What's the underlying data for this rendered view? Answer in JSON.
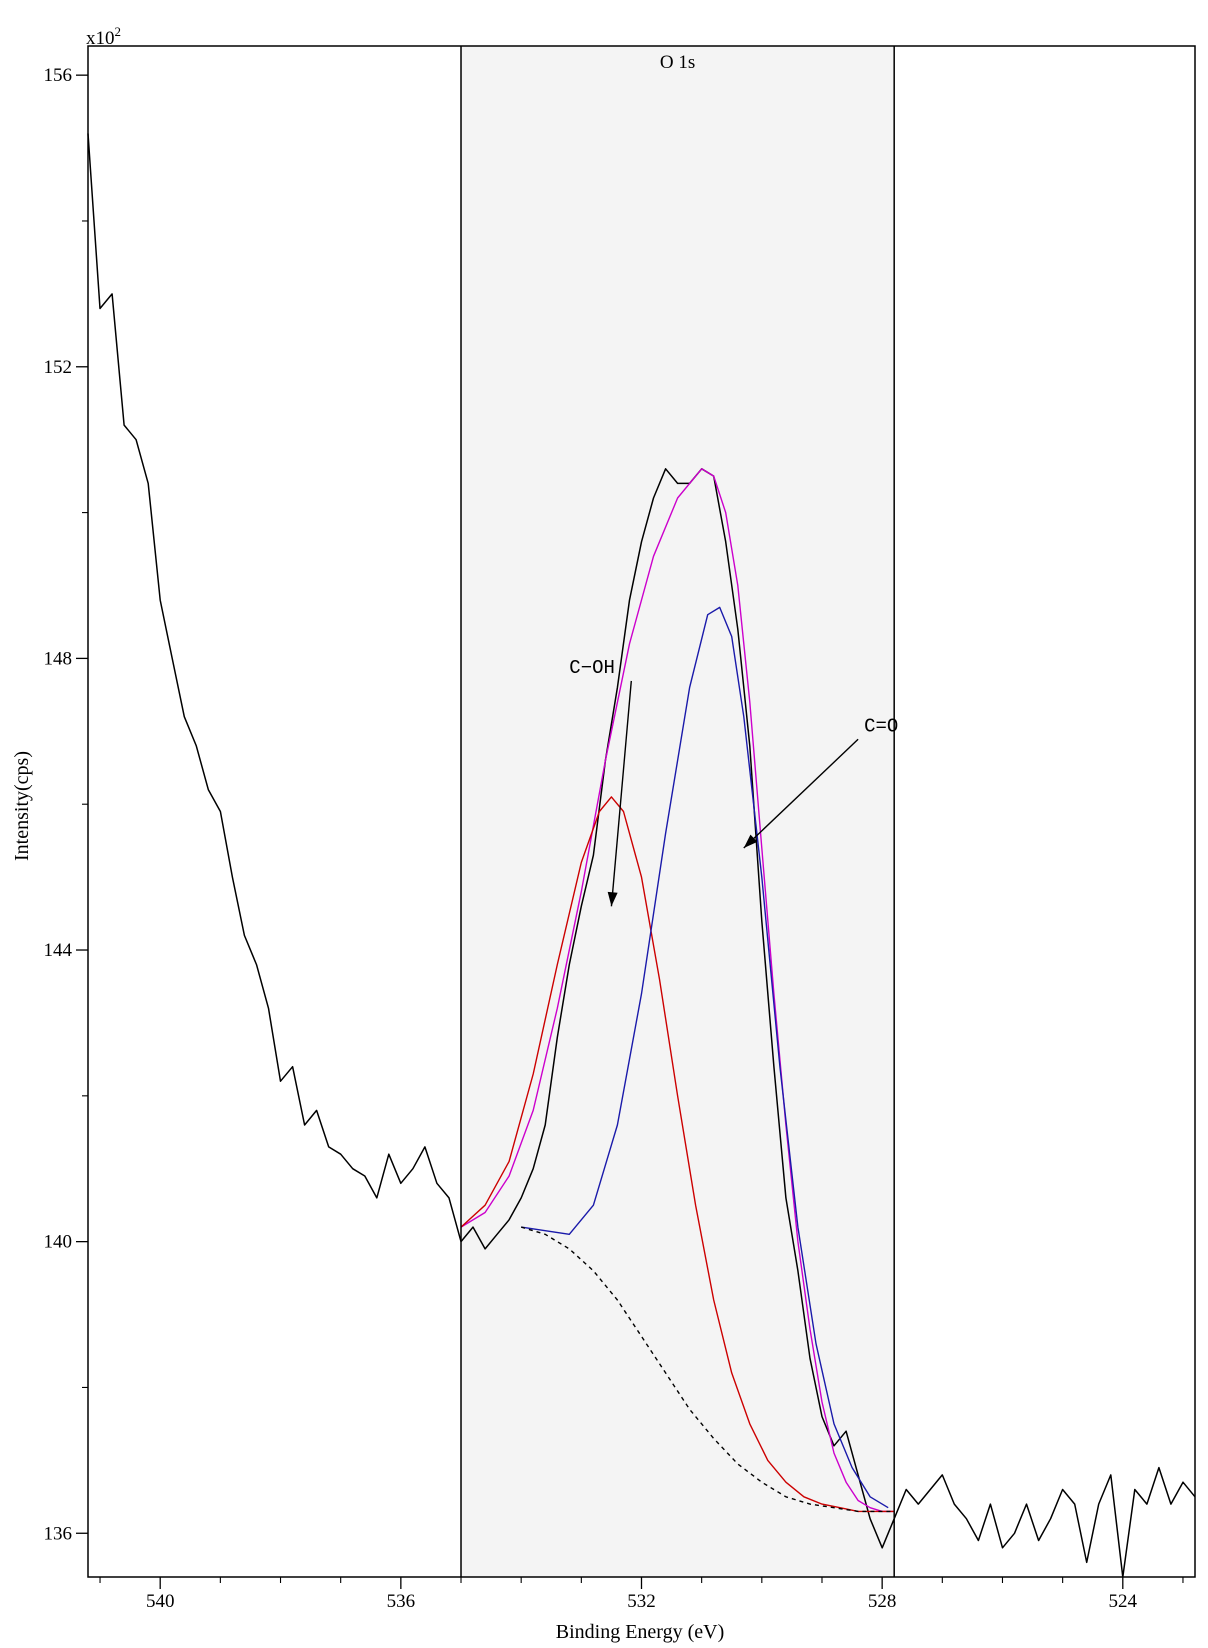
{
  "chart_data": {
    "type": "line",
    "title": "",
    "region_label": "O 1s",
    "xlabel": "Binding Energy (eV)",
    "ylabel": "Intensity(cps)",
    "y_multiplier_label": "x10",
    "y_multiplier_exp": "2",
    "x_reversed": true,
    "xlim": [
      541.2,
      522.8
    ],
    "ylim": [
      135.4,
      156.4
    ],
    "x_ticks": [
      540,
      536,
      532,
      528,
      524
    ],
    "y_ticks": [
      136,
      140,
      144,
      148,
      152,
      156
    ],
    "region": [
      535.0,
      527.8
    ],
    "grid": false,
    "colors": {
      "data": "#000000",
      "envelope": "#cc00cc",
      "c_oh": "#cc0000",
      "c_o": "#1a1aaa",
      "background": "#000000",
      "region_fill": "#f4f4f4"
    },
    "annotations": [
      {
        "text": "C−OH",
        "x": 533.2,
        "y": 147.8,
        "arrow_to": [
          532.5,
          144.6
        ]
      },
      {
        "text": "C=O",
        "x": 528.3,
        "y": 147.0,
        "arrow_to": [
          530.3,
          145.4
        ]
      }
    ],
    "series": [
      {
        "key": "data",
        "x": [
          541.2,
          541.0,
          540.8,
          540.6,
          540.4,
          540.2,
          540.0,
          539.8,
          539.6,
          539.4,
          539.2,
          539.0,
          538.8,
          538.6,
          538.4,
          538.2,
          538.0,
          537.8,
          537.6,
          537.4,
          537.2,
          537.0,
          536.8,
          536.6,
          536.4,
          536.2,
          536.0,
          535.8,
          535.6,
          535.4,
          535.2,
          535.0,
          534.8,
          534.6,
          534.4,
          534.2,
          534.0,
          533.8,
          533.6,
          533.4,
          533.2,
          533.0,
          532.8,
          532.6,
          532.4,
          532.2,
          532.0,
          531.8,
          531.6,
          531.4,
          531.2,
          531.0,
          530.8,
          530.6,
          530.4,
          530.2,
          530.0,
          529.8,
          529.6,
          529.4,
          529.2,
          529.0,
          528.8,
          528.6,
          528.4,
          528.2,
          528.0,
          527.8,
          527.6,
          527.4,
          527.2,
          527.0,
          526.8,
          526.6,
          526.4,
          526.2,
          526.0,
          525.8,
          525.6,
          525.4,
          525.2,
          525.0,
          524.8,
          524.6,
          524.4,
          524.2,
          524.0,
          523.8,
          523.6,
          523.4,
          523.2,
          523.0,
          522.8
        ],
        "y": [
          155.2,
          152.8,
          153.0,
          151.2,
          151.0,
          150.4,
          148.8,
          148.0,
          147.2,
          146.8,
          146.2,
          145.9,
          145.0,
          144.2,
          143.8,
          143.2,
          142.2,
          142.4,
          141.6,
          141.8,
          141.3,
          141.2,
          141.0,
          140.9,
          140.6,
          141.2,
          140.8,
          141.0,
          141.3,
          140.8,
          140.6,
          140.0,
          140.2,
          139.9,
          140.1,
          140.3,
          140.6,
          141.0,
          141.6,
          142.8,
          143.8,
          144.6,
          145.3,
          146.6,
          147.6,
          148.8,
          149.6,
          150.2,
          150.6,
          150.4,
          150.4,
          150.6,
          150.5,
          149.6,
          148.4,
          146.8,
          144.4,
          142.4,
          140.6,
          139.6,
          138.4,
          137.6,
          137.2,
          137.4,
          136.8,
          136.2,
          135.8,
          136.2,
          136.6,
          136.4,
          136.6,
          136.8,
          136.4,
          136.2,
          135.9,
          136.4,
          135.8,
          136.0,
          136.4,
          135.9,
          136.2,
          136.6,
          136.4,
          135.6,
          136.4,
          136.8,
          135.4,
          136.6,
          136.4,
          136.9,
          136.4,
          136.7,
          136.5
        ]
      },
      {
        "key": "envelope",
        "x": [
          535.0,
          534.6,
          534.2,
          533.8,
          533.4,
          533.0,
          532.6,
          532.2,
          531.8,
          531.4,
          531.0,
          530.8,
          530.6,
          530.4,
          530.2,
          530.0,
          529.8,
          529.6,
          529.4,
          529.2,
          529.0,
          528.8,
          528.6,
          528.4,
          528.2,
          528.0,
          527.8
        ],
        "y": [
          140.2,
          140.4,
          140.9,
          141.8,
          143.2,
          144.8,
          146.6,
          148.2,
          149.4,
          150.2,
          150.6,
          150.5,
          150.0,
          149.0,
          147.4,
          145.4,
          143.4,
          141.6,
          140.0,
          138.8,
          137.8,
          137.1,
          136.7,
          136.45,
          136.35,
          136.3,
          136.3
        ]
      },
      {
        "key": "c_oh",
        "x": [
          535.0,
          534.6,
          534.2,
          533.8,
          533.4,
          533.0,
          532.7,
          532.5,
          532.3,
          532.0,
          531.7,
          531.4,
          531.1,
          530.8,
          530.5,
          530.2,
          529.9,
          529.6,
          529.3,
          529.0,
          528.7,
          528.4,
          528.1,
          527.8
        ],
        "y": [
          140.2,
          140.5,
          141.1,
          142.3,
          143.8,
          145.2,
          145.9,
          146.1,
          145.9,
          145.0,
          143.6,
          142.0,
          140.5,
          139.2,
          138.2,
          137.5,
          137.0,
          136.7,
          136.5,
          136.4,
          136.35,
          136.3,
          136.3,
          136.3
        ]
      },
      {
        "key": "c_o",
        "x": [
          534.0,
          533.6,
          533.2,
          532.8,
          532.4,
          532.0,
          531.6,
          531.2,
          530.9,
          530.7,
          530.5,
          530.3,
          530.0,
          529.7,
          529.4,
          529.1,
          528.8,
          528.5,
          528.2,
          527.9
        ],
        "y": [
          140.2,
          140.15,
          140.1,
          140.5,
          141.6,
          143.4,
          145.6,
          147.6,
          148.6,
          148.7,
          148.3,
          147.2,
          145.0,
          142.4,
          140.2,
          138.6,
          137.5,
          136.9,
          136.5,
          136.35
        ]
      },
      {
        "key": "background",
        "x": [
          534.0,
          533.6,
          533.2,
          532.8,
          532.4,
          532.0,
          531.6,
          531.2,
          530.8,
          530.4,
          530.0,
          529.6,
          529.2,
          528.8,
          528.4,
          528.0,
          527.8
        ],
        "y": [
          140.2,
          140.1,
          139.9,
          139.6,
          139.2,
          138.7,
          138.2,
          137.7,
          137.3,
          136.95,
          136.7,
          136.5,
          136.4,
          136.35,
          136.3,
          136.3,
          136.3
        ]
      }
    ]
  }
}
